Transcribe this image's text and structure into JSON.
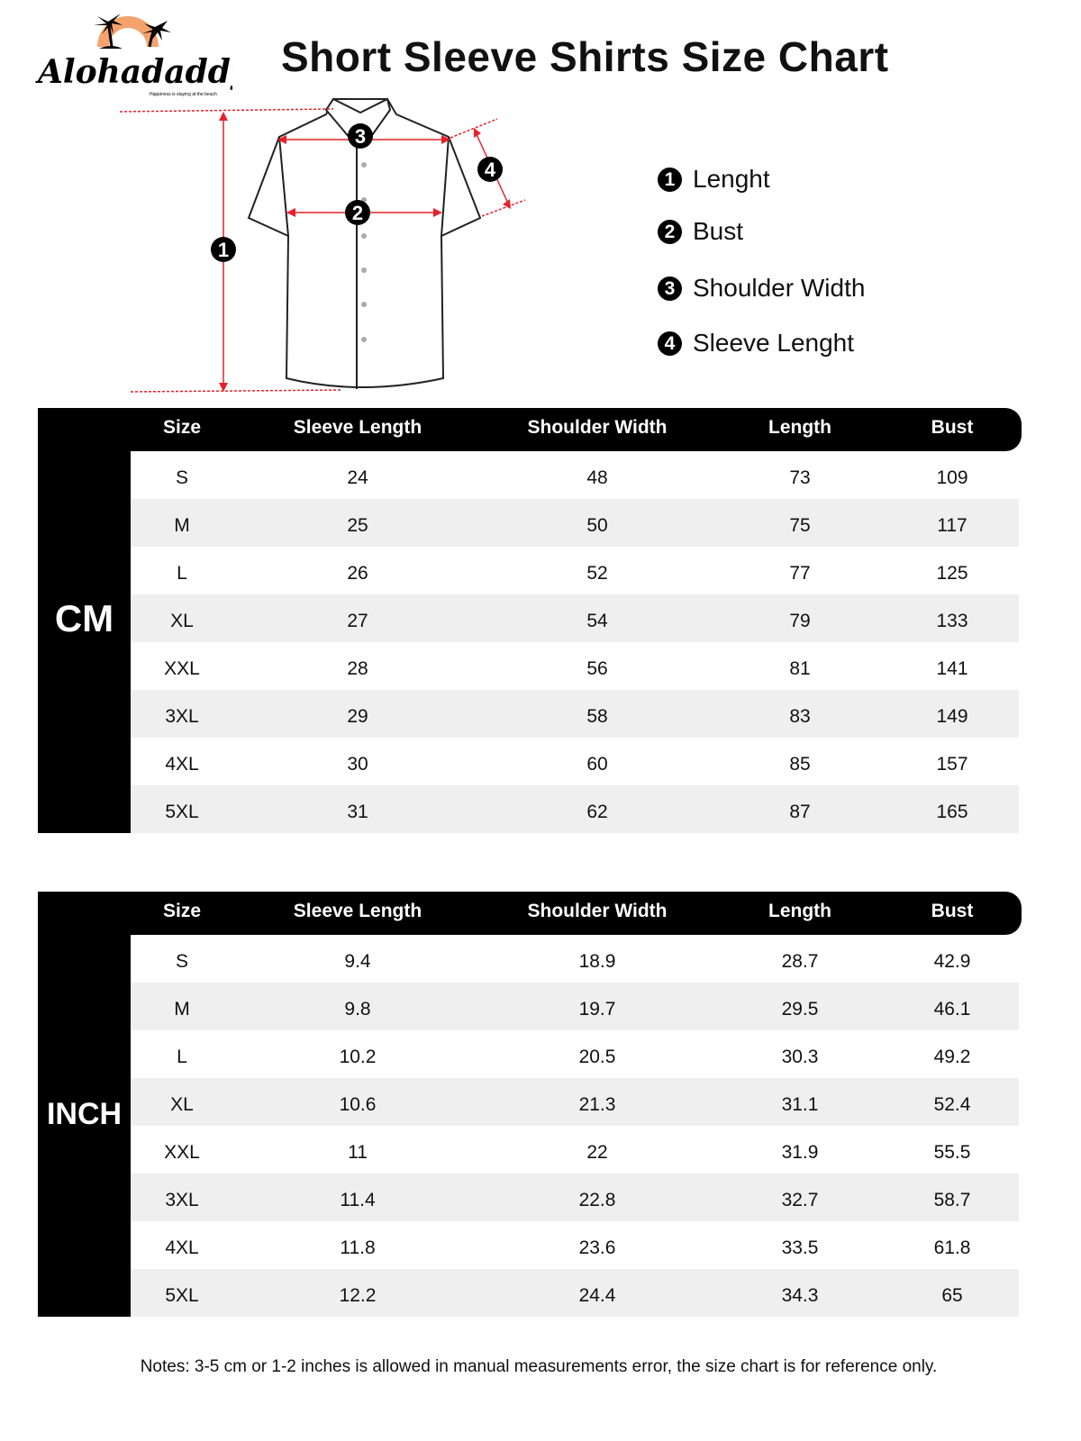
{
  "logo": {
    "brand": "Alohadaddy",
    "tagline": "Happiness is staying at the beach",
    "sun_color": "#f4a36c"
  },
  "title": "Short Sleeve Shirts Size Chart",
  "diagram": {
    "markers": [
      "1",
      "2",
      "3",
      "4"
    ],
    "measure_color": "#e8202a"
  },
  "legend": [
    {
      "num": "1",
      "label": "Lenght"
    },
    {
      "num": "2",
      "label": "Bust"
    },
    {
      "num": "3",
      "label": "Shoulder Width"
    },
    {
      "num": "4",
      "label": "Sleeve Lenght"
    }
  ],
  "columns": [
    "Size",
    "Sleeve Length",
    "Shoulder Width",
    "Length",
    "Bust"
  ],
  "tables": [
    {
      "unit": "CM",
      "rows": [
        [
          "S",
          "24",
          "48",
          "73",
          "109"
        ],
        [
          "M",
          "25",
          "50",
          "75",
          "117"
        ],
        [
          "L",
          "26",
          "52",
          "77",
          "125"
        ],
        [
          "XL",
          "27",
          "54",
          "79",
          "133"
        ],
        [
          "XXL",
          "28",
          "56",
          "81",
          "141"
        ],
        [
          "3XL",
          "29",
          "58",
          "83",
          "149"
        ],
        [
          "4XL",
          "30",
          "60",
          "85",
          "157"
        ],
        [
          "5XL",
          "31",
          "62",
          "87",
          "165"
        ]
      ]
    },
    {
      "unit": "INCH",
      "rows": [
        [
          "S",
          "9.4",
          "18.9",
          "28.7",
          "42.9"
        ],
        [
          "M",
          "9.8",
          "19.7",
          "29.5",
          "46.1"
        ],
        [
          "L",
          "10.2",
          "20.5",
          "30.3",
          "49.2"
        ],
        [
          "XL",
          "10.6",
          "21.3",
          "31.1",
          "52.4"
        ],
        [
          "XXL",
          "11",
          "22",
          "31.9",
          "55.5"
        ],
        [
          "3XL",
          "11.4",
          "22.8",
          "32.7",
          "58.7"
        ],
        [
          "4XL",
          "11.8",
          "23.6",
          "33.5",
          "61.8"
        ],
        [
          "5XL",
          "12.2",
          "24.4",
          "34.3",
          "65"
        ]
      ]
    }
  ],
  "notes": "Notes: 3-5 cm or 1-2 inches is allowed in manual measurements error, the size chart is for reference only."
}
